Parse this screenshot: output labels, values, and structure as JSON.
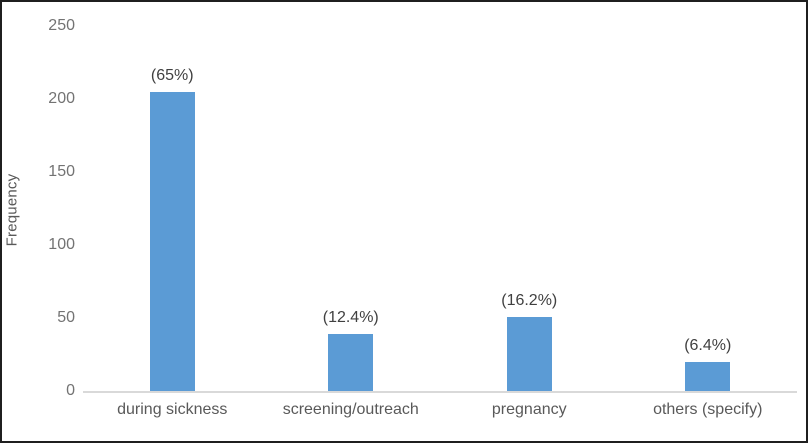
{
  "chart_data": {
    "type": "bar",
    "title": "",
    "xlabel": "",
    "ylabel": "Frequency",
    "categories": [
      "during sickness",
      "screening/outreach",
      "pregnancy",
      "others (specify)"
    ],
    "values": [
      205,
      39,
      51,
      20
    ],
    "data_labels": [
      "(65%)",
      "(12.4%)",
      "(16.2%)",
      "(6.4%)"
    ],
    "yticks": [
      0,
      50,
      100,
      150,
      200,
      250
    ],
    "ylim": [
      0,
      250
    ],
    "grid": "off",
    "legend": "none",
    "bar_color": "#5b9bd5",
    "axis_line_color": "#d9d9d9",
    "tick_label_color": "#737373",
    "category_label_color": "#595959",
    "data_label_color": "#404040",
    "frame_border_color": "#1f1f1f"
  }
}
